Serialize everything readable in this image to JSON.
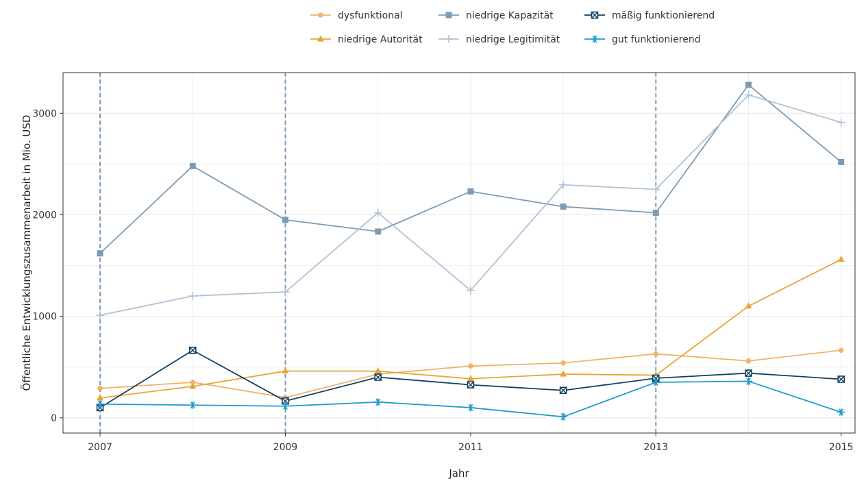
{
  "chart_data": {
    "type": "line",
    "xlabel": "Jahr",
    "ylabel": "Öffentliche Entwicklungszusammenarbeit in Mio. USD",
    "x": [
      2007,
      2008,
      2009,
      2010,
      2011,
      2012,
      2013,
      2014,
      2015
    ],
    "xlim": [
      2006.6,
      2015.15
    ],
    "ylim": [
      -150,
      3400
    ],
    "x_ticks": [
      "2007",
      "2009",
      "2011",
      "2013",
      "2015"
    ],
    "y_ticks": [
      "0",
      "1000",
      "2000",
      "3000"
    ],
    "vertical_reference_lines": [
      2007,
      2009,
      2013
    ],
    "grid": true,
    "legend_position": "top",
    "series": [
      {
        "name": "dysfunktional",
        "color": "#F2B26B",
        "marker": "circle",
        "values": [
          290,
          350,
          200,
          430,
          510,
          540,
          630,
          560,
          665
        ]
      },
      {
        "name": "niedrige Autorität",
        "color": "#E8A435",
        "marker": "triangle",
        "values": [
          195,
          310,
          460,
          460,
          385,
          430,
          420,
          1100,
          1560
        ]
      },
      {
        "name": "niedrige Kapazität",
        "color": "#7E9AB3",
        "marker": "square",
        "values": [
          1620,
          2480,
          1950,
          1835,
          2230,
          2080,
          2020,
          3280,
          2520
        ]
      },
      {
        "name": "niedrige Legitimität",
        "color": "#AFC2D6",
        "marker": "plus",
        "values": [
          1010,
          1200,
          1240,
          2020,
          1255,
          2295,
          2250,
          3180,
          2910
        ]
      },
      {
        "name": "mäßig funktionierend",
        "color": "#133F5E",
        "marker": "square-x",
        "values": [
          100,
          665,
          165,
          400,
          325,
          270,
          390,
          440,
          380
        ]
      },
      {
        "name": "gut funktionierend",
        "color": "#1F9CCB",
        "marker": "asterisk",
        "values": [
          135,
          125,
          115,
          155,
          100,
          10,
          350,
          360,
          55
        ]
      }
    ]
  }
}
